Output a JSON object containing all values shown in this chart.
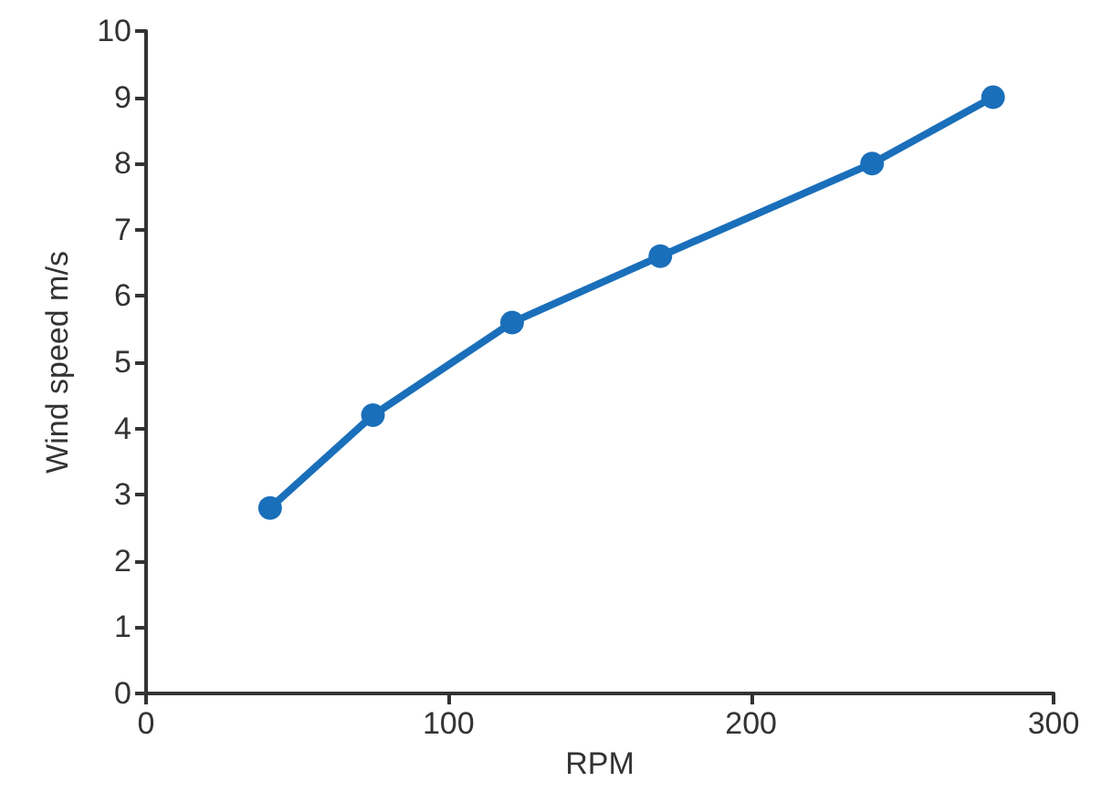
{
  "chart_data": {
    "type": "line",
    "xlabel": "RPM",
    "ylabel": "Wind speed m/s",
    "x": [
      41,
      75,
      121,
      170,
      240,
      280
    ],
    "series": [
      {
        "color": "#1a6fba",
        "values": [
          2.8,
          4.2,
          5.6,
          6.6,
          8.0,
          9.0
        ]
      }
    ],
    "xlim": [
      0,
      300
    ],
    "xticks": [
      0,
      100,
      200,
      300
    ],
    "ylim": [
      0,
      10
    ],
    "yticks": [
      0,
      1,
      2,
      3,
      4,
      5,
      6,
      7,
      8,
      9,
      10
    ],
    "grid": false,
    "marker": "circle",
    "line_style": "solid"
  }
}
